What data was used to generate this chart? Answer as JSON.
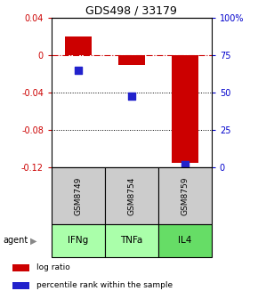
{
  "title": "GDS498 / 33179",
  "samples": [
    "GSM8749",
    "GSM8754",
    "GSM8759"
  ],
  "agents": [
    "IFNg",
    "TNFa",
    "IL4"
  ],
  "log_ratios": [
    0.02,
    -0.01,
    -0.115
  ],
  "percentile_ranks": [
    65,
    48,
    2
  ],
  "ylim_left": [
    -0.12,
    0.04
  ],
  "ylim_right": [
    0,
    100
  ],
  "yticks_left": [
    0.04,
    0,
    -0.04,
    -0.08,
    -0.12
  ],
  "yticks_right": [
    100,
    75,
    50,
    25,
    0
  ],
  "ytick_labels_left": [
    "0.04",
    "0",
    "-0.04",
    "-0.08",
    "-0.12"
  ],
  "ytick_labels_right": [
    "100%",
    "75",
    "50",
    "25",
    "0"
  ],
  "bar_color": "#cc0000",
  "square_color": "#2222cc",
  "sample_box_color": "#cccccc",
  "agent_box_color_light": "#aaffaa",
  "agent_box_color_dark": "#66dd66",
  "bar_width": 0.5,
  "legend_log_ratio": "log ratio",
  "legend_percentile": "percentile rank within the sample",
  "agent_label": "agent"
}
